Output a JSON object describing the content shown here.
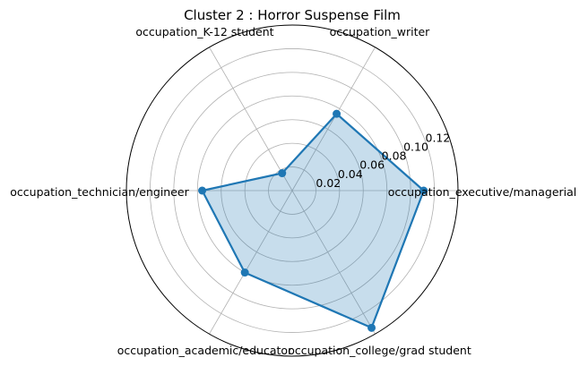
{
  "chart_data": {
    "type": "radar",
    "title": "Cluster 2 : Horror Suspense Film",
    "categories": [
      "occupation_executive/managerial",
      "occupation_writer",
      "occupation_K-12 student",
      "occupation_technician/engineer",
      "occupation_academic/educator",
      "occupation_college/grad student"
    ],
    "values": [
      0.111,
      0.075,
      0.017,
      0.076,
      0.08,
      0.134
    ],
    "r_ticks": [
      "0.02",
      "0.04",
      "0.06",
      "0.08",
      "0.10",
      "0.12"
    ],
    "r_tick_values": [
      0.02,
      0.04,
      0.06,
      0.08,
      0.1,
      0.12
    ],
    "r_max": 0.14,
    "grid": true,
    "line_color": "#1f77b4",
    "fill_color": "#1f77b4",
    "fill_alpha": 0.25
  }
}
